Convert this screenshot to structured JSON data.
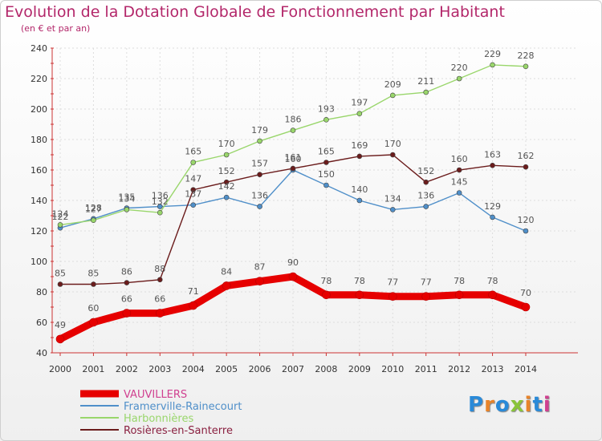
{
  "title": "Evolution de la Dotation Globale de Fonctionnement par Habitant",
  "subtitle": "(en € et par an)",
  "logo": {
    "text": "Proxiti",
    "colors": [
      "#2a8ad8",
      "#e8842a",
      "#2a8ad8",
      "#8ac43a",
      "#e8842a",
      "#2a8ad8",
      "#d04090"
    ]
  },
  "chart_data": {
    "type": "line",
    "title": "Evolution de la Dotation Globale de Fonctionnement par Habitant",
    "ylabel": "(en € et par an)",
    "xlabel": "",
    "x": [
      "2000",
      "2001",
      "2002",
      "2003",
      "2004",
      "2005",
      "2006",
      "2007",
      "2008",
      "2009",
      "2010",
      "2011",
      "2012",
      "2013",
      "2014"
    ],
    "ylim": [
      40,
      240
    ],
    "yticks": [
      40,
      60,
      80,
      100,
      120,
      140,
      160,
      180,
      200,
      220,
      240
    ],
    "grid": true,
    "legend_position": "bottom-left",
    "series": [
      {
        "name": "VAUVILLERS",
        "color": "#e60000",
        "thick": true,
        "values": [
          49,
          60,
          66,
          66,
          71,
          84,
          87,
          90,
          78,
          78,
          77,
          77,
          78,
          78,
          70
        ]
      },
      {
        "name": "Framerville-Rainecourt",
        "color": "#4f8fc9",
        "thick": false,
        "values": [
          122,
          128,
          135,
          136,
          137,
          142,
          136,
          160,
          150,
          140,
          134,
          136,
          145,
          129,
          120
        ]
      },
      {
        "name": "Harbonnières",
        "color": "#99d66b",
        "thick": false,
        "values": [
          124,
          127,
          134,
          132,
          165,
          170,
          179,
          186,
          193,
          197,
          209,
          211,
          220,
          229,
          228
        ]
      },
      {
        "name": "Rosières-en-Santerre",
        "color": "#6b1c1c",
        "thick": false,
        "values": [
          85,
          85,
          86,
          88,
          147,
          152,
          157,
          161,
          165,
          169,
          170,
          152,
          160,
          163,
          162
        ]
      }
    ]
  }
}
